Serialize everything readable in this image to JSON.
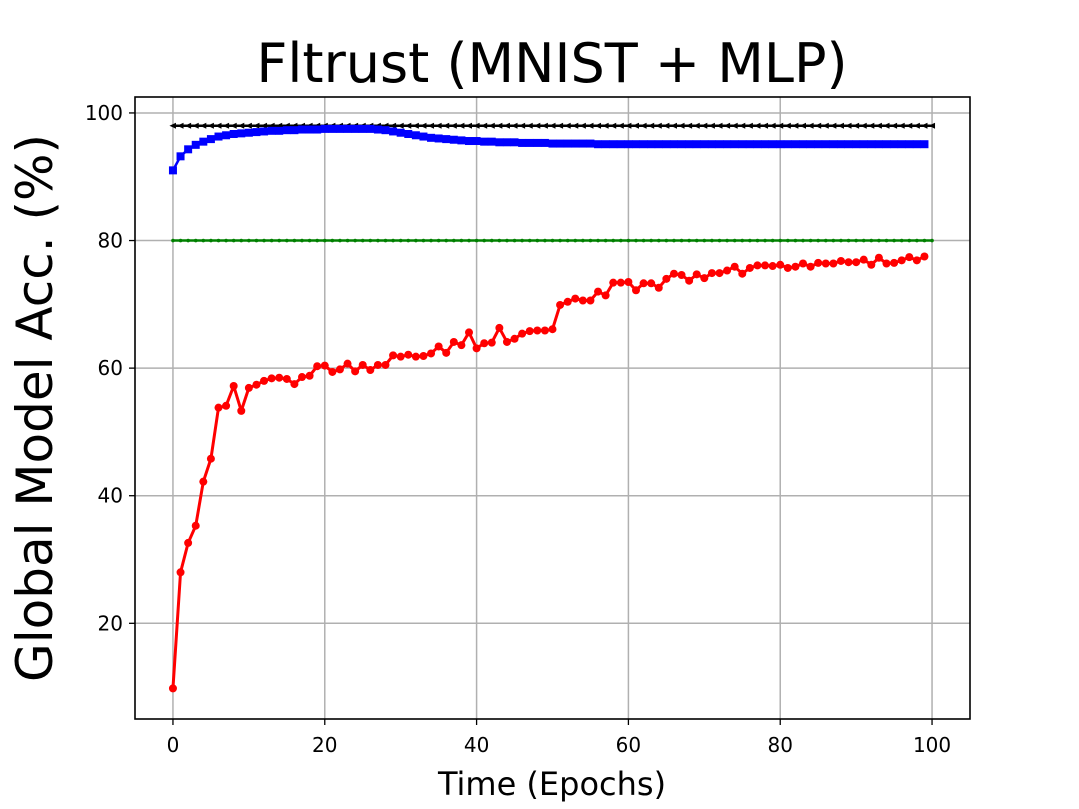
{
  "chart_data": {
    "type": "line",
    "title": "Fltrust (MNIST + MLP)",
    "xlabel": "Time (Epochs)",
    "ylabel": "Global Model Acc. (%)",
    "xlim": [
      -5,
      105
    ],
    "ylim": [
      5,
      102.5
    ],
    "xticks": [
      0,
      20,
      40,
      60,
      80,
      100
    ],
    "yticks": [
      20,
      40,
      60,
      80,
      100
    ],
    "grid": true,
    "legend": "none",
    "series": [
      {
        "color": "#000000",
        "marker": "triangle-left",
        "x": [
          0,
          1,
          2,
          3,
          4,
          5,
          6,
          7,
          8,
          9,
          10,
          11,
          12,
          13,
          14,
          15,
          16,
          17,
          18,
          19,
          20,
          21,
          22,
          23,
          24,
          25,
          26,
          27,
          28,
          29,
          30,
          31,
          32,
          33,
          34,
          35,
          36,
          37,
          38,
          39,
          40,
          41,
          42,
          43,
          44,
          45,
          46,
          47,
          48,
          49,
          50,
          51,
          52,
          53,
          54,
          55,
          56,
          57,
          58,
          59,
          60,
          61,
          62,
          63,
          64,
          65,
          66,
          67,
          68,
          69,
          70,
          71,
          72,
          73,
          74,
          75,
          76,
          77,
          78,
          79,
          80,
          81,
          82,
          83,
          84,
          85,
          86,
          87,
          88,
          89,
          90,
          91,
          92,
          93,
          94,
          95,
          96,
          97,
          98,
          99,
          100
        ],
        "y": [
          98,
          98,
          98,
          98,
          98,
          98,
          98,
          98,
          98,
          98,
          98,
          98,
          98,
          98,
          98,
          98,
          98,
          98,
          98,
          98,
          98,
          98,
          98,
          98,
          98,
          98,
          98,
          98,
          98,
          98,
          98,
          98,
          98,
          98,
          98,
          98,
          98,
          98,
          98,
          98,
          98,
          98,
          98,
          98,
          98,
          98,
          98,
          98,
          98,
          98,
          98,
          98,
          98,
          98,
          98,
          98,
          98,
          98,
          98,
          98,
          98,
          98,
          98,
          98,
          98,
          98,
          98,
          98,
          98,
          98,
          98,
          98,
          98,
          98,
          98,
          98,
          98,
          98,
          98,
          98,
          98,
          98,
          98,
          98,
          98,
          98,
          98,
          98,
          98,
          98,
          98,
          98,
          98,
          98,
          98,
          98,
          98,
          98,
          98,
          98,
          98
        ]
      },
      {
        "color": "#0000ff",
        "marker": "square",
        "x": [
          0,
          1,
          2,
          3,
          4,
          5,
          6,
          7,
          8,
          9,
          10,
          11,
          12,
          13,
          14,
          15,
          16,
          17,
          18,
          19,
          20,
          21,
          22,
          23,
          24,
          25,
          26,
          27,
          28,
          29,
          30,
          31,
          32,
          33,
          34,
          35,
          36,
          37,
          38,
          39,
          40,
          41,
          42,
          43,
          44,
          45,
          46,
          47,
          48,
          49,
          50,
          51,
          52,
          53,
          54,
          55,
          56,
          57,
          58,
          59,
          60,
          61,
          62,
          63,
          64,
          65,
          66,
          67,
          68,
          69,
          70,
          71,
          72,
          73,
          74,
          75,
          76,
          77,
          78,
          79,
          80,
          81,
          82,
          83,
          84,
          85,
          86,
          87,
          88,
          89,
          90,
          91,
          92,
          93,
          94,
          95,
          96,
          97,
          98,
          99
        ],
        "y": [
          91.0,
          93.2,
          94.3,
          95.0,
          95.5,
          95.9,
          96.3,
          96.5,
          96.7,
          96.8,
          96.9,
          97.0,
          97.1,
          97.2,
          97.2,
          97.3,
          97.3,
          97.4,
          97.4,
          97.4,
          97.5,
          97.5,
          97.5,
          97.5,
          97.5,
          97.5,
          97.5,
          97.4,
          97.3,
          97.1,
          96.9,
          96.7,
          96.5,
          96.3,
          96.1,
          96.0,
          95.9,
          95.8,
          95.7,
          95.6,
          95.6,
          95.5,
          95.5,
          95.4,
          95.4,
          95.4,
          95.3,
          95.3,
          95.3,
          95.3,
          95.2,
          95.2,
          95.2,
          95.2,
          95.2,
          95.2,
          95.1,
          95.1,
          95.1,
          95.1,
          95.1,
          95.1,
          95.1,
          95.1,
          95.1,
          95.1,
          95.1,
          95.1,
          95.1,
          95.1,
          95.1,
          95.1,
          95.1,
          95.1,
          95.1,
          95.1,
          95.1,
          95.1,
          95.1,
          95.1,
          95.1,
          95.1,
          95.1,
          95.1,
          95.1,
          95.1,
          95.1,
          95.1,
          95.1,
          95.1,
          95.1,
          95.1,
          95.1,
          95.1,
          95.1,
          95.1,
          95.1,
          95.1,
          95.1,
          95.1
        ]
      },
      {
        "color": "#008000",
        "marker": "dot",
        "x": [
          0,
          1,
          2,
          3,
          4,
          5,
          6,
          7,
          8,
          9,
          10,
          11,
          12,
          13,
          14,
          15,
          16,
          17,
          18,
          19,
          20,
          21,
          22,
          23,
          24,
          25,
          26,
          27,
          28,
          29,
          30,
          31,
          32,
          33,
          34,
          35,
          36,
          37,
          38,
          39,
          40,
          41,
          42,
          43,
          44,
          45,
          46,
          47,
          48,
          49,
          50,
          51,
          52,
          53,
          54,
          55,
          56,
          57,
          58,
          59,
          60,
          61,
          62,
          63,
          64,
          65,
          66,
          67,
          68,
          69,
          70,
          71,
          72,
          73,
          74,
          75,
          76,
          77,
          78,
          79,
          80,
          81,
          82,
          83,
          84,
          85,
          86,
          87,
          88,
          89,
          90,
          91,
          92,
          93,
          94,
          95,
          96,
          97,
          98,
          99,
          100
        ],
        "y": [
          80,
          80,
          80,
          80,
          80,
          80,
          80,
          80,
          80,
          80,
          80,
          80,
          80,
          80,
          80,
          80,
          80,
          80,
          80,
          80,
          80,
          80,
          80,
          80,
          80,
          80,
          80,
          80,
          80,
          80,
          80,
          80,
          80,
          80,
          80,
          80,
          80,
          80,
          80,
          80,
          80,
          80,
          80,
          80,
          80,
          80,
          80,
          80,
          80,
          80,
          80,
          80,
          80,
          80,
          80,
          80,
          80,
          80,
          80,
          80,
          80,
          80,
          80,
          80,
          80,
          80,
          80,
          80,
          80,
          80,
          80,
          80,
          80,
          80,
          80,
          80,
          80,
          80,
          80,
          80,
          80,
          80,
          80,
          80,
          80,
          80,
          80,
          80,
          80,
          80,
          80,
          80,
          80,
          80,
          80,
          80,
          80,
          80,
          80,
          80,
          80
        ]
      },
      {
        "color": "#ff0000",
        "marker": "circle",
        "x": [
          0,
          1,
          2,
          3,
          4,
          5,
          6,
          7,
          8,
          9,
          10,
          11,
          12,
          13,
          14,
          15,
          16,
          17,
          18,
          19,
          20,
          21,
          22,
          23,
          24,
          25,
          26,
          27,
          28,
          29,
          30,
          31,
          32,
          33,
          34,
          35,
          36,
          37,
          38,
          39,
          40,
          41,
          42,
          43,
          44,
          45,
          46,
          47,
          48,
          49,
          50,
          51,
          52,
          53,
          54,
          55,
          56,
          57,
          58,
          59,
          60,
          61,
          62,
          63,
          64,
          65,
          66,
          67,
          68,
          69,
          70,
          71,
          72,
          73,
          74,
          75,
          76,
          77,
          78,
          79,
          80,
          81,
          82,
          83,
          84,
          85,
          86,
          87,
          88,
          89,
          90,
          91,
          92,
          93,
          94,
          95,
          96,
          97,
          98,
          99
        ],
        "y": [
          9.8,
          28.0,
          32.6,
          35.3,
          42.2,
          45.8,
          53.8,
          54.1,
          57.2,
          53.3,
          56.9,
          57.4,
          58.0,
          58.4,
          58.5,
          58.3,
          57.5,
          58.6,
          58.8,
          60.3,
          60.4,
          59.4,
          59.8,
          60.7,
          59.5,
          60.5,
          59.7,
          60.5,
          60.5,
          62.0,
          61.8,
          62.1,
          61.8,
          61.9,
          62.3,
          63.4,
          62.4,
          64.1,
          63.6,
          65.6,
          63.1,
          63.9,
          64.0,
          66.3,
          64.1,
          64.6,
          65.4,
          65.8,
          65.9,
          65.9,
          66.1,
          69.9,
          70.4,
          70.9,
          70.6,
          70.6,
          72.0,
          71.4,
          73.4,
          73.4,
          73.5,
          72.2,
          73.3,
          73.3,
          72.6,
          74.0,
          74.8,
          74.6,
          73.7,
          74.7,
          74.1,
          74.9,
          74.9,
          75.3,
          75.9,
          74.8,
          75.7,
          76.1,
          76.1,
          76.0,
          76.2,
          75.7,
          75.9,
          76.4,
          75.9,
          76.5,
          76.4,
          76.4,
          76.8,
          76.6,
          76.6,
          77.0,
          76.2,
          77.3,
          76.4,
          76.5,
          76.9,
          77.4,
          76.9,
          77.5
        ]
      }
    ]
  }
}
